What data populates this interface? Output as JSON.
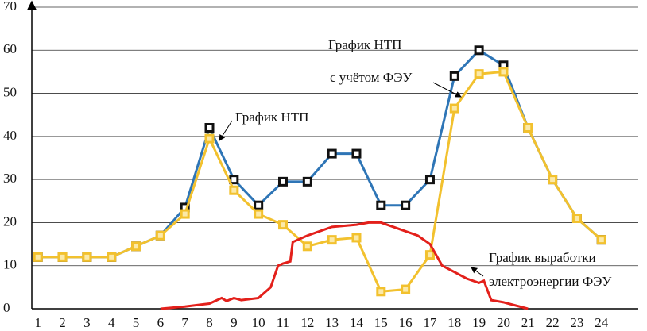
{
  "chart_data": {
    "type": "line",
    "xlim": [
      0.75,
      25.5
    ],
    "xticks": [
      1,
      2,
      3,
      4,
      5,
      6,
      7,
      8,
      9,
      10,
      11,
      12,
      13,
      14,
      15,
      16,
      17,
      18,
      19,
      20,
      21,
      22,
      23,
      24
    ],
    "ylim": [
      0,
      70
    ],
    "yticks": [
      0,
      10,
      20,
      30,
      40,
      50,
      60,
      70
    ],
    "grid": true,
    "series": [
      {
        "color": "#2e75b6",
        "marker": "square-dark",
        "x": [
          1,
          2,
          3,
          4,
          5,
          6,
          7,
          8,
          9,
          10,
          11,
          12,
          13,
          14,
          15,
          16,
          17,
          18,
          19,
          20,
          21,
          22,
          23,
          24
        ],
        "values": [
          12,
          12,
          12,
          12,
          14.5,
          17,
          23.5,
          42,
          30,
          24,
          29.5,
          29.5,
          36,
          36,
          24,
          24,
          30,
          54,
          60,
          56.5,
          42,
          30,
          21,
          16
        ]
      },
      {
        "color": "#f2c12e",
        "marker": "square-light",
        "x": [
          1,
          2,
          3,
          4,
          5,
          6,
          7,
          8,
          9,
          10,
          11,
          12,
          13,
          14,
          15,
          16,
          17,
          18,
          19,
          20,
          21,
          22,
          23,
          24
        ],
        "values": [
          12,
          12,
          12,
          12,
          14.5,
          17,
          22,
          39.5,
          27.5,
          22,
          19.5,
          14.5,
          16,
          16.5,
          4,
          4.5,
          12.5,
          46.5,
          54.5,
          55,
          42,
          30,
          21,
          16
        ]
      },
      {
        "color": "#e3201b",
        "marker": "none",
        "x": [
          6,
          7,
          8,
          8.5,
          8.7,
          9,
          9.3,
          10,
          10.5,
          10.8,
          11,
          11.3,
          11.4,
          12,
          12.5,
          13,
          14,
          14.5,
          15,
          16,
          16.5,
          17,
          17.5,
          18,
          18.5,
          19,
          19.2,
          19.5,
          20,
          21
        ],
        "values": [
          0,
          0.5,
          1.2,
          2.5,
          1.8,
          2.5,
          2,
          2.5,
          5,
          10,
          10.5,
          11,
          15.5,
          17,
          18,
          19,
          19.5,
          20,
          20,
          18,
          17,
          15,
          10,
          8.5,
          7,
          6,
          6.5,
          2,
          1.5,
          0
        ]
      }
    ],
    "annotations": [
      "График НТП",
      "с учётом ФЭУ",
      "График НТП",
      "График выработки",
      "электроэнергии ФЭУ"
    ]
  }
}
